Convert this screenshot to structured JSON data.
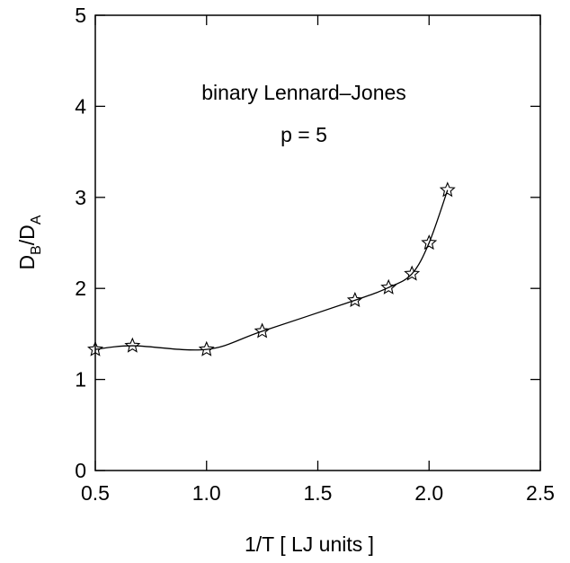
{
  "chart_data": {
    "type": "line",
    "xlabel": "1/T [ LJ units ]",
    "ylabel": {
      "base1": "D",
      "sub1": "B",
      "slash": "/",
      "base2": "D",
      "sub2": "A"
    },
    "annotations": [
      "binary Lennard–Jones",
      "p = 5"
    ],
    "xlim": [
      0.5,
      2.5
    ],
    "ylim": [
      0,
      5
    ],
    "x_ticks": [
      0.5,
      1.0,
      1.5,
      2.0,
      2.5
    ],
    "x_tick_labels": [
      "0.5",
      "1.0",
      "1.5",
      "2.0",
      "2.5"
    ],
    "y_ticks": [
      0,
      1,
      2,
      3,
      4,
      5
    ],
    "y_tick_labels": [
      "0",
      "1",
      "2",
      "3",
      "4",
      "5"
    ],
    "grid": false,
    "marker": "star",
    "series": [
      {
        "x": [
          0.5,
          0.667,
          1.0,
          1.25,
          1.667,
          1.818,
          1.923,
          2.0,
          2.083
        ],
        "y": [
          1.33,
          1.37,
          1.33,
          1.53,
          1.87,
          2.01,
          2.16,
          2.5,
          3.08
        ]
      }
    ]
  }
}
